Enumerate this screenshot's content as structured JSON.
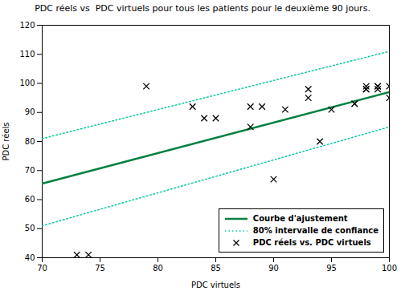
{
  "chart_data": {
    "type": "scatter",
    "title": "PDC réels vs  PDC virtuels pour tous les patients pour le deuxième 90 jours.",
    "xlabel": "PDC virtuels",
    "ylabel": "PDC réels",
    "xlim": [
      70,
      100
    ],
    "ylim": [
      40,
      120
    ],
    "xticks": [
      70,
      75,
      80,
      85,
      90,
      95,
      100
    ],
    "yticks": [
      40,
      50,
      60,
      70,
      80,
      90,
      100,
      110,
      120
    ],
    "grid": false,
    "legend": "lower right",
    "series": [
      {
        "name": "Courbe d'ajustement",
        "type": "line",
        "line_style": "solid",
        "color": "#008040",
        "x": [
          70,
          100
        ],
        "values": [
          65.5,
          97
        ]
      },
      {
        "name": "80% intervalle de confiance",
        "type": "line",
        "line_style": "dotted",
        "color": "#00C8A0",
        "x": [
          70,
          100
        ],
        "upper": [
          81,
          111
        ],
        "lower": [
          51,
          85
        ]
      },
      {
        "name": "PDC réels vs. PDC virtuels",
        "type": "scatter",
        "marker": "x",
        "color": "#000000",
        "x": [
          73,
          74,
          79,
          83,
          84,
          85,
          88,
          88,
          89,
          90,
          91,
          93,
          93,
          94,
          95,
          97,
          97,
          98,
          98,
          98,
          99,
          99,
          99,
          100,
          100
        ],
        "values": [
          41,
          41,
          99,
          92,
          88,
          88,
          85,
          92,
          92,
          67,
          91,
          98,
          95,
          80,
          91,
          93,
          93,
          98,
          98,
          99,
          98,
          99,
          99,
          99,
          95
        ]
      }
    ]
  }
}
